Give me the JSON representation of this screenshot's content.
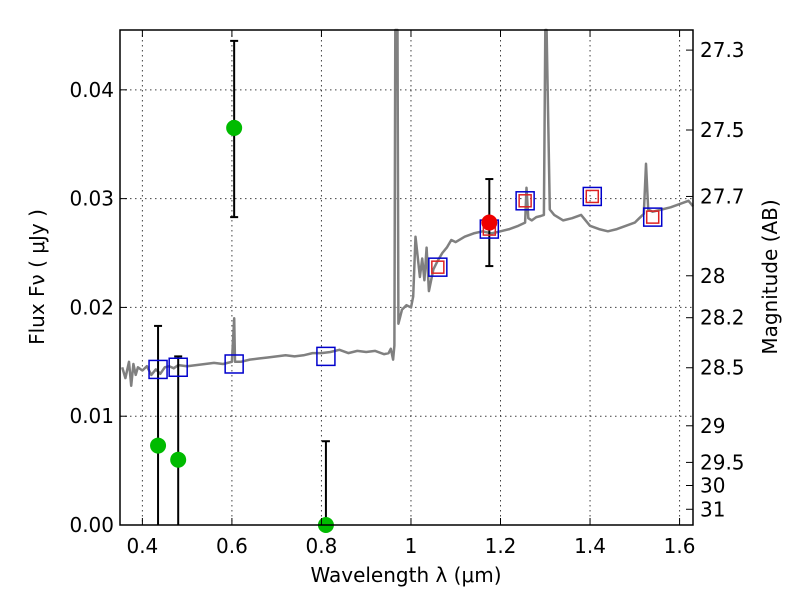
{
  "chart_data": {
    "type": "scatter",
    "xlabel": "Wavelength  λ (μm)",
    "ylabel": "Flux  Fν  ( μJy )",
    "ylabel_right": "Magnitude (AB)",
    "xlim": [
      0.35,
      1.63
    ],
    "ylim": [
      0.0,
      0.0455
    ],
    "grid": true,
    "x_ticks": [
      {
        "value": 0.4,
        "label": "0.4"
      },
      {
        "value": 0.6,
        "label": "0.6"
      },
      {
        "value": 0.8,
        "label": "0.8"
      },
      {
        "value": 1.0,
        "label": "1"
      },
      {
        "value": 1.2,
        "label": "1.2"
      },
      {
        "value": 1.4,
        "label": "1.4"
      },
      {
        "value": 1.6,
        "label": "1.6"
      }
    ],
    "y_ticks": [
      {
        "value": 0.0,
        "label": "0.00"
      },
      {
        "value": 0.01,
        "label": "0.01"
      },
      {
        "value": 0.02,
        "label": "0.02"
      },
      {
        "value": 0.03,
        "label": "0.03"
      },
      {
        "value": 0.04,
        "label": "0.04"
      }
    ],
    "mag_ticks": [
      {
        "value": 27.3,
        "label": "27.3"
      },
      {
        "value": 27.5,
        "label": "27.5"
      },
      {
        "value": 27.7,
        "label": "27.7"
      },
      {
        "value": 28.0,
        "label": "28"
      },
      {
        "value": 28.2,
        "label": "28.2"
      },
      {
        "value": 28.5,
        "label": "28.5"
      },
      {
        "value": 29.0,
        "label": "29"
      },
      {
        "value": 29.5,
        "label": "29.5"
      },
      {
        "value": 30.0,
        "label": "30"
      },
      {
        "value": 31.0,
        "label": "31"
      }
    ],
    "colors": {
      "spectrum": "#808080",
      "detection": "#00bb00",
      "highlight": "#ee0000",
      "model_box": "#0000cc",
      "model_box_inner": "#dd2222",
      "errorbar": "#000000"
    },
    "series": [
      {
        "name": "model spectrum",
        "type": "line",
        "x": [
          0.355,
          0.362,
          0.37,
          0.375,
          0.38,
          0.385,
          0.39,
          0.4,
          0.41,
          0.42,
          0.43,
          0.44,
          0.45,
          0.46,
          0.47,
          0.48,
          0.5,
          0.52,
          0.54,
          0.56,
          0.58,
          0.6,
          0.605,
          0.607,
          0.61,
          0.62,
          0.64,
          0.66,
          0.68,
          0.7,
          0.72,
          0.74,
          0.76,
          0.78,
          0.8,
          0.82,
          0.84,
          0.86,
          0.88,
          0.9,
          0.92,
          0.94,
          0.95,
          0.955,
          0.96,
          0.963,
          0.965,
          0.97,
          0.972,
          0.975,
          0.98,
          0.99,
          1.0,
          1.005,
          1.01,
          1.02,
          1.025,
          1.03,
          1.035,
          1.04,
          1.05,
          1.06,
          1.07,
          1.08,
          1.09,
          1.1,
          1.12,
          1.14,
          1.16,
          1.18,
          1.2,
          1.22,
          1.24,
          1.255,
          1.258,
          1.262,
          1.27,
          1.28,
          1.29,
          1.297,
          1.3,
          1.303,
          1.31,
          1.32,
          1.34,
          1.36,
          1.38,
          1.4,
          1.42,
          1.44,
          1.46,
          1.48,
          1.5,
          1.51,
          1.52,
          1.525,
          1.53,
          1.54,
          1.56,
          1.58,
          1.6,
          1.62,
          1.63
        ],
        "y": [
          0.0145,
          0.0135,
          0.015,
          0.0128,
          0.0148,
          0.0138,
          0.0145,
          0.0142,
          0.0146,
          0.0138,
          0.0143,
          0.0139,
          0.0145,
          0.0146,
          0.0144,
          0.0147,
          0.0146,
          0.0147,
          0.0148,
          0.0149,
          0.0148,
          0.015,
          0.019,
          0.015,
          0.015,
          0.015,
          0.0152,
          0.0153,
          0.0154,
          0.0155,
          0.0156,
          0.0155,
          0.0156,
          0.0158,
          0.0158,
          0.0159,
          0.0161,
          0.0158,
          0.016,
          0.0159,
          0.016,
          0.0157,
          0.0158,
          0.0162,
          0.0152,
          0.0165,
          0.0455,
          0.0455,
          0.0185,
          0.019,
          0.0198,
          0.0202,
          0.02,
          0.021,
          0.0265,
          0.0228,
          0.0245,
          0.0225,
          0.0255,
          0.0215,
          0.0235,
          0.0243,
          0.025,
          0.0255,
          0.0262,
          0.026,
          0.0265,
          0.0268,
          0.027,
          0.0268,
          0.027,
          0.0272,
          0.0275,
          0.0278,
          0.031,
          0.0282,
          0.028,
          0.0283,
          0.0284,
          0.0285,
          0.0455,
          0.0455,
          0.029,
          0.0285,
          0.028,
          0.0282,
          0.0285,
          0.0275,
          0.0272,
          0.027,
          0.0272,
          0.0275,
          0.0278,
          0.0282,
          0.0286,
          0.0332,
          0.029,
          0.0288,
          0.029,
          0.0292,
          0.0295,
          0.0298,
          0.0293
        ]
      },
      {
        "name": "model photometry",
        "type": "square",
        "x": [
          0.435,
          0.48,
          0.605,
          0.81,
          1.06,
          1.175,
          1.255,
          1.405,
          1.54
        ],
        "y": [
          0.0143,
          0.0145,
          0.0148,
          0.0155,
          0.0237,
          0.0272,
          0.0298,
          0.0302,
          0.0283
        ]
      },
      {
        "name": "observed flux",
        "type": "points-with-errors",
        "x": [
          0.435,
          0.48,
          0.605,
          0.81,
          1.175
        ],
        "y": [
          0.0073,
          0.006,
          0.0365,
          0.0,
          0.0278
        ],
        "yerr_low": [
          0.0073,
          0.006,
          0.0082,
          0.0,
          0.004
        ],
        "yerr_high": [
          0.011,
          0.0095,
          0.008,
          0.0077,
          0.004
        ],
        "marker": [
          "green",
          "green",
          "green",
          "green",
          "red"
        ]
      }
    ]
  }
}
